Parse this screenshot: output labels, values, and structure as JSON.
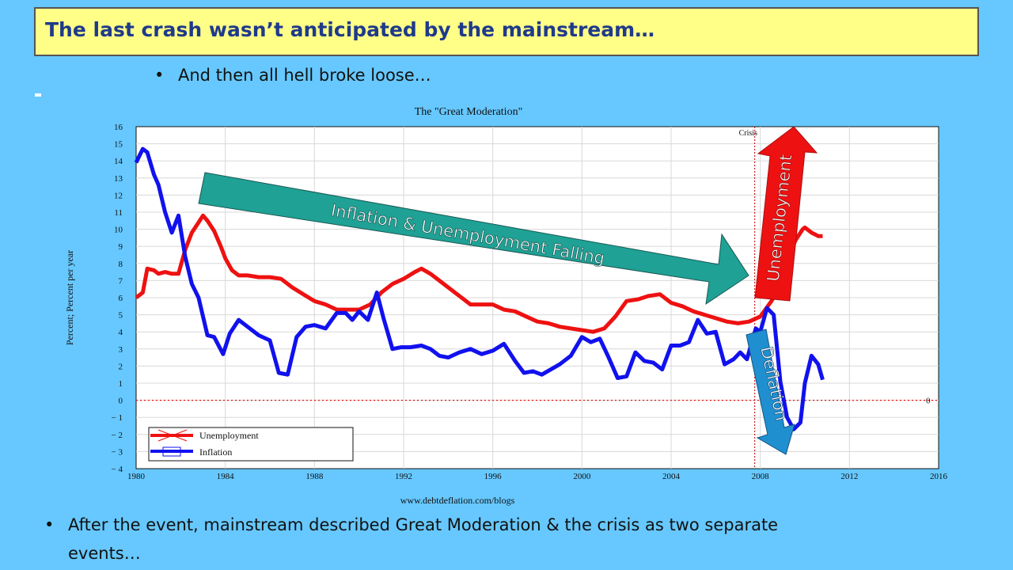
{
  "title": "The last crash wasn’t anticipated by the mainstream…",
  "bullets": {
    "top": "And then all hell broke loose…",
    "bottom_line1": "After the event, mainstream described Great Moderation & the crisis as two separate",
    "bottom_line2": "events…"
  },
  "colors": {
    "unemployment": "#ee1111",
    "inflation": "#1111ee",
    "arrow_teal": "#1fa195",
    "arrow_red": "#ee1111",
    "arrow_blue": "#1f8fd0",
    "plot_bg": "#ffffff",
    "title_bg": "#ffff88",
    "title_text": "#1f3a8a",
    "page_bg": "#66c8ff"
  },
  "chart_data": {
    "type": "line",
    "title": "The \"Great Moderation\"",
    "xlabel": "",
    "ylabel": "Percent; Percent per year",
    "source": "www.debtdeflation.com/blogs",
    "xlim": [
      1980,
      2016
    ],
    "ylim": [
      -4,
      16
    ],
    "xticks": [
      1980,
      1984,
      1988,
      1992,
      1996,
      2000,
      2004,
      2008,
      2012,
      2016
    ],
    "yticks": [
      -4,
      -3,
      -2,
      -1,
      0,
      1,
      2,
      3,
      4,
      5,
      6,
      7,
      8,
      9,
      10,
      11,
      12,
      13,
      14,
      15,
      16
    ],
    "grid": true,
    "legend": "bottom-left",
    "crisis_line": {
      "x": 2007.75,
      "label": "Crisis"
    },
    "zero_label": "0",
    "annotations": [
      {
        "text": "Inflation & Unemployment Falling"
      },
      {
        "text": "Unemployment"
      },
      {
        "text": "Deflation"
      }
    ],
    "series": [
      {
        "name": "Unemployment",
        "x": [
          1980.0,
          1980.3,
          1980.5,
          1980.8,
          1981.0,
          1981.3,
          1981.6,
          1981.9,
          1982.2,
          1982.5,
          1982.8,
          1983.0,
          1983.2,
          1983.5,
          1983.8,
          1984.0,
          1984.3,
          1984.6,
          1985.0,
          1985.5,
          1986.0,
          1986.5,
          1987.0,
          1987.5,
          1988.0,
          1988.5,
          1989.0,
          1989.5,
          1990.0,
          1990.5,
          1991.0,
          1991.5,
          1992.0,
          1992.5,
          1992.8,
          1993.2,
          1993.6,
          1994.0,
          1994.5,
          1995.0,
          1995.5,
          1996.0,
          1996.5,
          1997.0,
          1997.5,
          1998.0,
          1998.5,
          1999.0,
          1999.5,
          2000.0,
          2000.5,
          2001.0,
          2001.5,
          2002.0,
          2002.5,
          2003.0,
          2003.5,
          2004.0,
          2004.5,
          2005.0,
          2005.5,
          2006.0,
          2006.5,
          2007.0,
          2007.5,
          2008.0,
          2008.5,
          2008.8,
          2009.0,
          2009.3,
          2009.6,
          2009.9,
          2010.0,
          2010.3,
          2010.6,
          2010.8
        ],
        "values": [
          6.0,
          6.3,
          7.7,
          7.6,
          7.4,
          7.5,
          7.4,
          7.4,
          8.8,
          9.8,
          10.4,
          10.8,
          10.5,
          9.9,
          9.0,
          8.3,
          7.6,
          7.3,
          7.3,
          7.2,
          7.2,
          7.1,
          6.6,
          6.2,
          5.8,
          5.6,
          5.3,
          5.3,
          5.3,
          5.6,
          6.3,
          6.8,
          7.1,
          7.5,
          7.7,
          7.4,
          7.0,
          6.6,
          6.1,
          5.6,
          5.6,
          5.6,
          5.3,
          5.2,
          4.9,
          4.6,
          4.5,
          4.3,
          4.2,
          4.1,
          4.0,
          4.2,
          4.9,
          5.8,
          5.9,
          6.1,
          6.2,
          5.7,
          5.5,
          5.2,
          5.0,
          4.8,
          4.6,
          4.5,
          4.6,
          4.9,
          5.8,
          6.5,
          7.6,
          8.6,
          9.4,
          10.0,
          10.1,
          9.8,
          9.6,
          9.6
        ]
      },
      {
        "name": "Inflation",
        "x": [
          1980.0,
          1980.3,
          1980.5,
          1980.8,
          1981.0,
          1981.3,
          1981.6,
          1981.9,
          1982.2,
          1982.5,
          1982.8,
          1983.2,
          1983.5,
          1983.9,
          1984.2,
          1984.6,
          1985.0,
          1985.5,
          1986.0,
          1986.4,
          1986.8,
          1987.2,
          1987.6,
          1988.0,
          1988.5,
          1989.0,
          1989.4,
          1989.7,
          1990.0,
          1990.4,
          1990.8,
          1991.1,
          1991.5,
          1991.9,
          1992.3,
          1992.8,
          1993.2,
          1993.6,
          1994.0,
          1994.5,
          1995.0,
          1995.5,
          1996.0,
          1996.5,
          1997.0,
          1997.4,
          1997.8,
          1998.2,
          1998.6,
          1999.0,
          1999.5,
          2000.0,
          2000.4,
          2000.8,
          2001.2,
          2001.6,
          2002.0,
          2002.4,
          2002.8,
          2003.2,
          2003.6,
          2004.0,
          2004.4,
          2004.8,
          2005.2,
          2005.6,
          2006.0,
          2006.4,
          2006.8,
          2007.1,
          2007.4,
          2007.8,
          2008.0,
          2008.3,
          2008.6,
          2008.9,
          2009.2,
          2009.5,
          2009.8,
          2010.0,
          2010.3,
          2010.6,
          2010.8
        ],
        "values": [
          13.9,
          14.7,
          14.5,
          13.2,
          12.6,
          11.0,
          9.8,
          10.8,
          8.4,
          6.8,
          6.0,
          3.8,
          3.7,
          2.7,
          3.9,
          4.7,
          4.3,
          3.8,
          3.5,
          1.6,
          1.5,
          3.7,
          4.3,
          4.4,
          4.2,
          5.1,
          5.1,
          4.7,
          5.2,
          4.7,
          6.3,
          4.8,
          3.0,
          3.1,
          3.1,
          3.2,
          3.0,
          2.6,
          2.5,
          2.8,
          3.0,
          2.7,
          2.9,
          3.3,
          2.3,
          1.6,
          1.7,
          1.5,
          1.8,
          2.1,
          2.6,
          3.7,
          3.4,
          3.6,
          2.5,
          1.3,
          1.4,
          2.8,
          2.3,
          2.2,
          1.8,
          3.2,
          3.2,
          3.4,
          4.7,
          3.9,
          4.0,
          2.1,
          2.4,
          2.8,
          2.4,
          4.2,
          4.0,
          5.4,
          5.0,
          1.1,
          -1.0,
          -1.7,
          -1.3,
          1.0,
          2.6,
          2.1,
          1.2
        ]
      }
    ]
  }
}
